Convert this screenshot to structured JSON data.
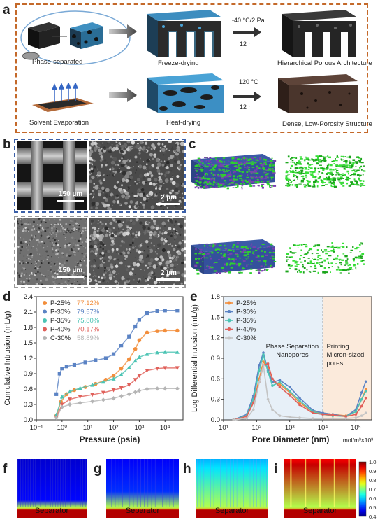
{
  "panels": {
    "a": "a",
    "b": "b",
    "c": "c",
    "d": "d",
    "e": "e",
    "f": "f",
    "g": "g",
    "h": "h",
    "i": "i"
  },
  "panel_a": {
    "phase_separated": "Phase-separated",
    "freeze_drying": "Freeze-drying",
    "cond_top_1": "-40 °C/2 Pa",
    "cond_top_2": "12 h",
    "hier": "Hierarchical Porous Architecture",
    "solvent": "Solvent Evaporation",
    "heat": "Heat-drying",
    "cond_bot_1": "120 °C",
    "cond_bot_2": "12 h",
    "dense": "Dense, Low-Porosity Structure",
    "colors": {
      "frame": "#c4692a",
      "blue": "#4aa3d6",
      "dark": "#1f1f1f",
      "brown": "#5a4236"
    }
  },
  "panel_b": {
    "scale1": "150 µm",
    "scale2": "2 µm",
    "scale3": "150 µm",
    "scale4": "2 µm",
    "colors": {
      "frame_top": "#3a5fa8",
      "frame_bottom": "#9a9a9a"
    }
  },
  "panel_c": {
    "colors": {
      "purple": "#7a3fb0",
      "green": "#2fd02f",
      "blue": "#3c5aa8"
    }
  },
  "chart_data": [
    {
      "type": "scatter",
      "ylabel": "Cumulative Intrusion (mL/g)",
      "xlabel": "Pressure (psia)",
      "xscale": "log",
      "xlim": [
        0.1,
        50000
      ],
      "ylim": [
        0,
        2.4
      ],
      "yticks": [
        "0.0",
        "0.3",
        "0.6",
        "0.9",
        "1.2",
        "1.5",
        "1.8",
        "2.1",
        "2.4"
      ],
      "xticks": [
        "10⁻¹",
        "10⁰",
        "10¹",
        "10²",
        "10³",
        "10⁴"
      ],
      "legend_position": "top-left",
      "series": [
        {
          "name": "P-25%",
          "porosity": "77.12%",
          "color": "#f28e3c",
          "marker": "circle",
          "x": [
            0.6,
            0.9,
            1.5,
            3,
            8,
            20,
            50,
            100,
            200,
            400,
            700,
            1000,
            2000,
            5000,
            10000,
            30000
          ],
          "y": [
            0.08,
            0.35,
            0.5,
            0.58,
            0.64,
            0.7,
            0.78,
            0.86,
            1.0,
            1.18,
            1.38,
            1.55,
            1.7,
            1.73,
            1.74,
            1.74
          ]
        },
        {
          "name": "P-30%",
          "porosity": "79.57%",
          "color": "#5b83c4",
          "marker": "square",
          "x": [
            0.6,
            0.8,
            1.0,
            1.5,
            3,
            8,
            20,
            50,
            100,
            200,
            400,
            700,
            1000,
            2000,
            5000,
            10000,
            30000
          ],
          "y": [
            0.5,
            0.9,
            1.0,
            1.04,
            1.07,
            1.12,
            1.16,
            1.2,
            1.28,
            1.45,
            1.62,
            1.82,
            1.95,
            2.08,
            2.12,
            2.13,
            2.13
          ]
        },
        {
          "name": "P-35%",
          "porosity": "75.80%",
          "color": "#4cc4b4",
          "marker": "triangle",
          "x": [
            0.6,
            1.0,
            2,
            5,
            15,
            40,
            100,
            200,
            400,
            700,
            1000,
            2000,
            5000,
            10000,
            30000
          ],
          "y": [
            0.1,
            0.45,
            0.55,
            0.62,
            0.68,
            0.74,
            0.8,
            0.88,
            1.02,
            1.15,
            1.22,
            1.28,
            1.31,
            1.32,
            1.32
          ]
        },
        {
          "name": "P-40%",
          "porosity": "70.17%",
          "color": "#e0605a",
          "marker": "triangle-down",
          "x": [
            0.6,
            1.0,
            2,
            5,
            15,
            40,
            100,
            200,
            400,
            700,
            1000,
            2000,
            5000,
            10000,
            30000
          ],
          "y": [
            0.05,
            0.3,
            0.4,
            0.45,
            0.49,
            0.53,
            0.58,
            0.62,
            0.68,
            0.78,
            0.86,
            0.96,
            1.0,
            1.01,
            1.01
          ]
        },
        {
          "name": "C-30%",
          "porosity": "58.89%",
          "color": "#b5b5b5",
          "marker": "diamond",
          "x": [
            0.6,
            1.0,
            2,
            5,
            15,
            40,
            100,
            200,
            400,
            700,
            1000,
            2000,
            5000,
            10000,
            30000
          ],
          "y": [
            0.04,
            0.25,
            0.3,
            0.33,
            0.36,
            0.39,
            0.42,
            0.46,
            0.5,
            0.54,
            0.57,
            0.6,
            0.61,
            0.61,
            0.61
          ]
        }
      ]
    },
    {
      "type": "line",
      "ylabel": "Log Differential Intrusion (mL/g)",
      "xlabel": "Pore Diameter (nm)",
      "unit_note": "mol/m³×10³",
      "xscale": "log",
      "xlim": [
        10,
        300000
      ],
      "ylim": [
        0,
        1.8
      ],
      "yticks": [
        "0.0",
        "0.3",
        "0.6",
        "0.9",
        "1.2",
        "1.5",
        "1.8"
      ],
      "xticks": [
        "10¹",
        "10²",
        "10³",
        "10⁴",
        "10⁵"
      ],
      "annotations": [
        "Phase Separation",
        "Nanopores",
        "Printing",
        "Micron-sized",
        "pores"
      ],
      "legend_position": "top-left",
      "series": [
        {
          "name": "P-25%",
          "color": "#f28e3c",
          "x": [
            20,
            50,
            80,
            120,
            160,
            220,
            300,
            500,
            1000,
            2000,
            5000,
            10000,
            20000,
            50000,
            100000,
            150000,
            200000
          ],
          "y": [
            0.0,
            0.05,
            0.25,
            0.6,
            0.85,
            0.75,
            0.55,
            0.52,
            0.4,
            0.25,
            0.12,
            0.1,
            0.08,
            0.06,
            0.12,
            0.3,
            0.45
          ]
        },
        {
          "name": "P-30%",
          "color": "#5b83c4",
          "x": [
            20,
            50,
            80,
            120,
            160,
            220,
            300,
            500,
            1000,
            2000,
            5000,
            10000,
            20000,
            50000,
            100000,
            150000,
            200000
          ],
          "y": [
            0.0,
            0.08,
            0.35,
            0.8,
            0.98,
            0.72,
            0.55,
            0.58,
            0.48,
            0.32,
            0.14,
            0.1,
            0.08,
            0.05,
            0.15,
            0.4,
            0.56
          ]
        },
        {
          "name": "P-35%",
          "color": "#4cc4b4",
          "x": [
            20,
            50,
            80,
            120,
            160,
            220,
            300,
            500,
            1000,
            2000,
            5000,
            10000,
            20000,
            50000,
            100000,
            150000,
            200000
          ],
          "y": [
            0.0,
            0.06,
            0.3,
            0.72,
            0.95,
            0.7,
            0.5,
            0.55,
            0.42,
            0.28,
            0.12,
            0.08,
            0.06,
            0.05,
            0.12,
            0.3,
            0.42
          ]
        },
        {
          "name": "P-40%",
          "color": "#e0605a",
          "x": [
            20,
            50,
            80,
            120,
            160,
            220,
            300,
            500,
            1000,
            2000,
            5000,
            10000,
            20000,
            50000,
            100000,
            150000,
            200000
          ],
          "y": [
            0.0,
            0.05,
            0.25,
            0.55,
            0.8,
            0.82,
            0.6,
            0.48,
            0.36,
            0.22,
            0.1,
            0.08,
            0.07,
            0.05,
            0.08,
            0.2,
            0.32
          ]
        },
        {
          "name": "C-30%",
          "color": "#c4c4c4",
          "x": [
            20,
            50,
            80,
            120,
            160,
            220,
            300,
            500,
            1000,
            2000,
            5000,
            10000,
            20000,
            50000,
            100000,
            150000,
            200000
          ],
          "y": [
            0.0,
            0.02,
            0.15,
            0.55,
            0.8,
            0.3,
            0.15,
            0.06,
            0.04,
            0.03,
            0.02,
            0.02,
            0.02,
            0.02,
            0.03,
            0.06,
            0.1
          ]
        }
      ]
    },
    {
      "type": "heatmap",
      "colorbar_ticks": [
        "1.0",
        "0.9",
        "0.8",
        "0.7",
        "0.6",
        "0.5",
        "0.4"
      ],
      "unit": "mol/m³×10³"
    }
  ],
  "panel_fi": {
    "separator": "Separator"
  }
}
